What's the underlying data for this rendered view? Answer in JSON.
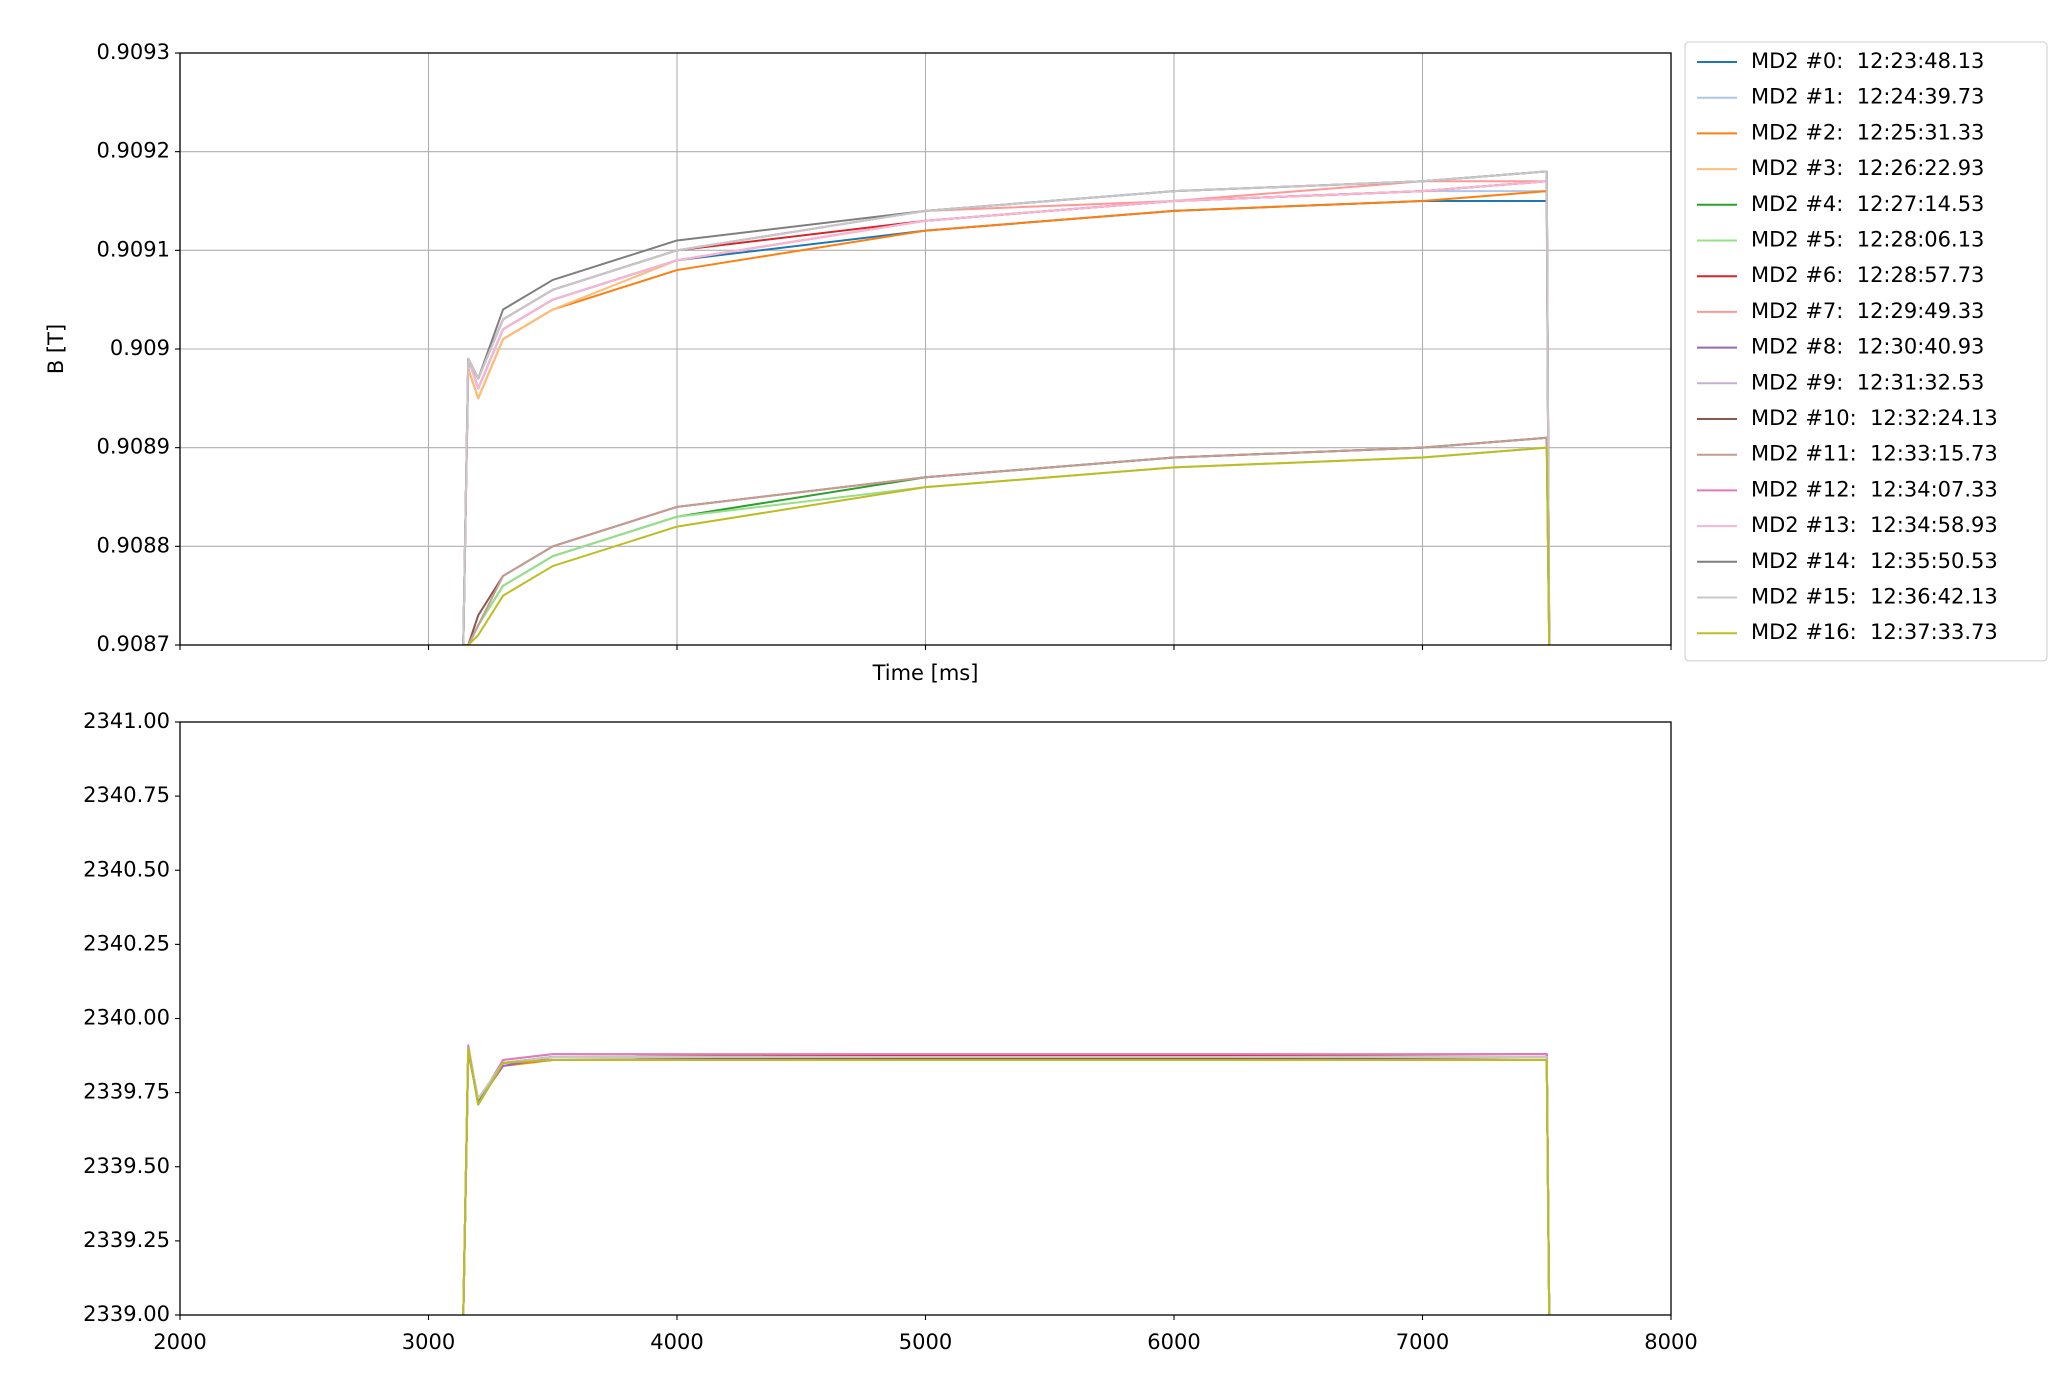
{
  "chart_data": [
    {
      "type": "line",
      "xlabel": "Time [ms]",
      "ylabel": "B [T]",
      "grid": true,
      "legend": "right",
      "xlim": [
        2000,
        8000
      ],
      "xticks": [
        2000,
        3000,
        4000,
        5000,
        6000,
        7000,
        8000
      ],
      "ylim": [
        0.9087,
        0.9093
      ],
      "yticks": [
        0.9087,
        0.9088,
        0.9089,
        0.909,
        0.9091,
        0.9092,
        0.9093
      ],
      "x": [
        3140,
        3160,
        3200,
        3300,
        3500,
        4000,
        5000,
        6000,
        7000,
        7500,
        7510
      ],
      "series": [
        {
          "name": "MD2 #0:  12:23:48.13",
          "color": "#1f77b4",
          "values": [
            0.9087,
            0.90899,
            0.90896,
            0.90902,
            0.90905,
            0.90909,
            0.90912,
            0.90914,
            0.90915,
            0.90915,
            0.9087
          ]
        },
        {
          "name": "MD2 #1:  12:24:39.73",
          "color": "#aec7e8",
          "values": [
            0.9087,
            0.90899,
            0.90896,
            0.90902,
            0.90905,
            0.90909,
            0.90913,
            0.90915,
            0.90916,
            0.90916,
            0.9087
          ]
        },
        {
          "name": "MD2 #2:  12:25:31.33",
          "color": "#ff7f0e",
          "values": [
            0.9087,
            0.90898,
            0.90895,
            0.90901,
            0.90904,
            0.90908,
            0.90912,
            0.90914,
            0.90915,
            0.90916,
            0.9087
          ]
        },
        {
          "name": "MD2 #3:  12:26:22.93",
          "color": "#ffbb78",
          "values": [
            0.9087,
            0.90898,
            0.90895,
            0.90901,
            0.90904,
            0.90909,
            0.90913,
            0.90915,
            0.90916,
            0.90917,
            0.9087
          ]
        },
        {
          "name": "MD2 #4:  12:27:14.53",
          "color": "#2ca02c",
          "values": [
            0.9087,
            0.9087,
            0.90872,
            0.90876,
            0.90879,
            0.90883,
            0.90887,
            0.90889,
            0.9089,
            0.90891,
            0.9087
          ]
        },
        {
          "name": "MD2 #5:  12:28:06.13",
          "color": "#98df8a",
          "values": [
            0.9087,
            0.9087,
            0.90872,
            0.90876,
            0.90879,
            0.90883,
            0.90886,
            0.90888,
            0.90889,
            0.9089,
            0.9087
          ]
        },
        {
          "name": "MD2 #6:  12:28:57.73",
          "color": "#d62728",
          "values": [
            0.9087,
            0.90899,
            0.90897,
            0.90903,
            0.90906,
            0.9091,
            0.90913,
            0.90915,
            0.90916,
            0.90917,
            0.9087
          ]
        },
        {
          "name": "MD2 #7:  12:29:49.33",
          "color": "#ff9896",
          "values": [
            0.9087,
            0.90899,
            0.90897,
            0.90903,
            0.90906,
            0.9091,
            0.90914,
            0.90915,
            0.90917,
            0.90917,
            0.9087
          ]
        },
        {
          "name": "MD2 #8:  12:30:40.93",
          "color": "#9467bd",
          "values": [
            0.9087,
            0.90899,
            0.90897,
            0.90903,
            0.90906,
            0.9091,
            0.90914,
            0.90916,
            0.90917,
            0.90918,
            0.9087
          ]
        },
        {
          "name": "MD2 #9:  12:31:32.53",
          "color": "#c5b0d5",
          "values": [
            0.9087,
            0.90899,
            0.90897,
            0.90903,
            0.90906,
            0.9091,
            0.90914,
            0.90916,
            0.90917,
            0.90918,
            0.9087
          ]
        },
        {
          "name": "MD2 #10:  12:32:24.13",
          "color": "#8c564b",
          "values": [
            0.9087,
            0.9087,
            0.90873,
            0.90877,
            0.9088,
            0.90884,
            0.90887,
            0.90889,
            0.9089,
            0.90891,
            0.9087
          ]
        },
        {
          "name": "MD2 #11:  12:33:15.73",
          "color": "#c49c94",
          "values": [
            0.9087,
            0.9087,
            0.90872,
            0.90877,
            0.9088,
            0.90884,
            0.90887,
            0.90889,
            0.9089,
            0.90891,
            0.9087
          ]
        },
        {
          "name": "MD2 #12:  12:34:07.33",
          "color": "#e377c2",
          "values": [
            0.9087,
            0.90899,
            0.90896,
            0.90902,
            0.90905,
            0.90909,
            0.90913,
            0.90915,
            0.90916,
            0.90917,
            0.9087
          ]
        },
        {
          "name": "MD2 #13:  12:34:58.93",
          "color": "#f7b6d2",
          "values": [
            0.9087,
            0.90899,
            0.90896,
            0.90902,
            0.90905,
            0.90909,
            0.90913,
            0.90915,
            0.90916,
            0.90917,
            0.9087
          ]
        },
        {
          "name": "MD2 #14:  12:35:50.53",
          "color": "#7f7f7f",
          "values": [
            0.9087,
            0.90899,
            0.90897,
            0.90904,
            0.90907,
            0.90911,
            0.90914,
            0.90916,
            0.90917,
            0.90918,
            0.9087
          ]
        },
        {
          "name": "MD2 #15:  12:36:42.13",
          "color": "#c7c7c7",
          "values": [
            0.9087,
            0.90899,
            0.90897,
            0.90903,
            0.90906,
            0.9091,
            0.90914,
            0.90916,
            0.90917,
            0.90918,
            0.9087
          ]
        },
        {
          "name": "MD2 #16:  12:37:33.73",
          "color": "#bcbd22",
          "values": [
            0.9087,
            0.9087,
            0.90871,
            0.90875,
            0.90878,
            0.90882,
            0.90886,
            0.90888,
            0.90889,
            0.9089,
            0.9087
          ]
        }
      ]
    },
    {
      "type": "line",
      "grid": false,
      "xlim": [
        2000,
        8000
      ],
      "xticks": [
        2000,
        3000,
        4000,
        5000,
        6000,
        7000,
        8000
      ],
      "ylim": [
        2339,
        2341
      ],
      "yticks": [
        {
          "value": 2339,
          "label": "2339.00"
        },
        {
          "value": 2339.25,
          "label": "2339.25"
        },
        {
          "value": 2339.5,
          "label": "2339.50"
        },
        {
          "value": 2339.75,
          "label": "2339.75"
        },
        {
          "value": 2340,
          "label": "2340.00"
        },
        {
          "value": 2340.25,
          "label": "2340.25"
        },
        {
          "value": 2340.5,
          "label": "2340.50"
        },
        {
          "value": 2340.75,
          "label": "2340.75"
        },
        {
          "value": 2341,
          "label": "2341.00"
        }
      ],
      "x": [
        3140,
        3160,
        3200,
        3300,
        3500,
        7500,
        7510
      ],
      "series": [
        {
          "color": "#1f77b4",
          "values": [
            2339,
            2339.9,
            2339.72,
            2339.85,
            2339.87,
            2339.87,
            2339
          ]
        },
        {
          "color": "#aec7e8",
          "values": [
            2339,
            2339.89,
            2339.73,
            2339.85,
            2339.87,
            2339.86,
            2339
          ]
        },
        {
          "color": "#ff7f0e",
          "values": [
            2339,
            2339.9,
            2339.72,
            2339.84,
            2339.86,
            2339.87,
            2339
          ]
        },
        {
          "color": "#ffbb78",
          "values": [
            2339,
            2339.89,
            2339.72,
            2339.85,
            2339.87,
            2339.87,
            2339
          ]
        },
        {
          "color": "#2ca02c",
          "values": [
            2339,
            2339.9,
            2339.71,
            2339.85,
            2339.87,
            2339.87,
            2339
          ]
        },
        {
          "color": "#98df8a",
          "values": [
            2339,
            2339.9,
            2339.72,
            2339.86,
            2339.88,
            2339.87,
            2339
          ]
        },
        {
          "color": "#d62728",
          "values": [
            2339,
            2339.89,
            2339.72,
            2339.85,
            2339.87,
            2339.88,
            2339
          ]
        },
        {
          "color": "#ff9896",
          "values": [
            2339,
            2339.9,
            2339.73,
            2339.85,
            2339.87,
            2339.87,
            2339
          ]
        },
        {
          "color": "#9467bd",
          "values": [
            2339,
            2339.9,
            2339.72,
            2339.84,
            2339.87,
            2339.86,
            2339
          ]
        },
        {
          "color": "#c5b0d5",
          "values": [
            2339,
            2339.89,
            2339.72,
            2339.85,
            2339.87,
            2339.87,
            2339
          ]
        },
        {
          "color": "#8c564b",
          "values": [
            2339,
            2339.9,
            2339.71,
            2339.85,
            2339.86,
            2339.87,
            2339
          ]
        },
        {
          "color": "#c49c94",
          "values": [
            2339,
            2339.9,
            2339.72,
            2339.85,
            2339.87,
            2339.87,
            2339
          ]
        },
        {
          "color": "#e377c2",
          "values": [
            2339,
            2339.91,
            2339.72,
            2339.86,
            2339.88,
            2339.88,
            2339
          ]
        },
        {
          "color": "#f7b6d2",
          "values": [
            2339,
            2339.9,
            2339.72,
            2339.85,
            2339.87,
            2339.87,
            2339
          ]
        },
        {
          "color": "#7f7f7f",
          "values": [
            2339,
            2339.89,
            2339.72,
            2339.85,
            2339.87,
            2339.87,
            2339
          ]
        },
        {
          "color": "#c7c7c7",
          "values": [
            2339,
            2339.9,
            2339.73,
            2339.85,
            2339.87,
            2339.87,
            2339
          ]
        },
        {
          "color": "#bcbd22",
          "values": [
            2339,
            2339.9,
            2339.71,
            2339.85,
            2339.86,
            2339.86,
            2339
          ]
        }
      ]
    }
  ]
}
